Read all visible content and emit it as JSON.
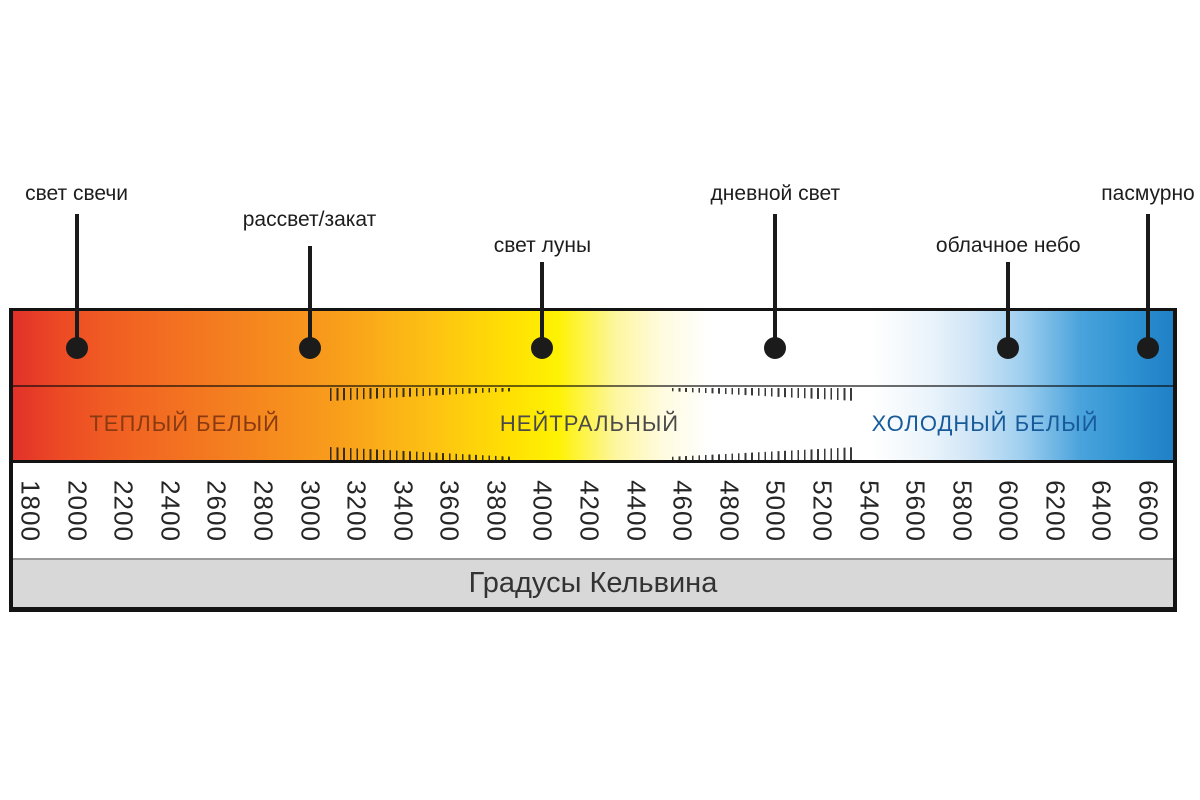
{
  "annotations": [
    {
      "label": "свет свечи",
      "kelvin": 2000,
      "tier": "high"
    },
    {
      "label": "рассвет/закат",
      "kelvin": 3000,
      "tier": "mid"
    },
    {
      "label": "свет луны",
      "kelvin": 4000,
      "tier": "low"
    },
    {
      "label": "дневной свет",
      "kelvin": 5000,
      "tier": "high"
    },
    {
      "label": "облачное небо",
      "kelvin": 6000,
      "tier": "low"
    },
    {
      "label": "пасмурно",
      "kelvin": 6600,
      "tier": "high"
    }
  ],
  "zones": [
    {
      "label": "ТЕПЛЫЙ БЕЛЫЙ"
    },
    {
      "label": "НЕЙТРАЛЬНЫЙ"
    },
    {
      "label": "ХОЛОДНЫЙ БЕЛЫЙ"
    }
  ],
  "scale": {
    "min": 1800,
    "max": 6600,
    "step": 200,
    "title": "Градусы Кельвина"
  },
  "colors": {
    "warm_red": "#e2312a",
    "orange": "#f47d20",
    "yellow": "#ffe103",
    "neutral_white": "#ffffff",
    "cold_blue": "#2080c6",
    "footer_gray": "#d8d8d8",
    "zone_warm_text": "#8a3a12",
    "zone_neutral_text": "#4a4a4a",
    "zone_cold_text": "#175a99",
    "ink": "#1b1b1b"
  },
  "chart_data": {
    "type": "scale",
    "axis_label": "Градусы Кельвина",
    "axis_range": [
      1800,
      6600
    ],
    "tick_step": 200,
    "tick_labels": [
      1800,
      2000,
      2200,
      2400,
      2600,
      2800,
      3000,
      3200,
      3400,
      3600,
      3800,
      4000,
      4200,
      4400,
      4600,
      4800,
      5000,
      5200,
      5400,
      5600,
      5800,
      6000,
      6200,
      6400,
      6600
    ],
    "zones": [
      {
        "label": "ТЕПЛЫЙ БЕЛЫЙ",
        "approx_range_k": [
          1800,
          3300
        ]
      },
      {
        "label": "НЕЙТРАЛЬНЫЙ",
        "approx_range_k": [
          3300,
          5300
        ]
      },
      {
        "label": "ХОЛОДНЫЙ БЕЛЫЙ",
        "approx_range_k": [
          5300,
          6600
        ]
      }
    ],
    "points": [
      {
        "label": "свет свечи",
        "kelvin": 2000
      },
      {
        "label": "рассвет/закат",
        "kelvin": 3000
      },
      {
        "label": "свет луны",
        "kelvin": 4000
      },
      {
        "label": "дневной свет",
        "kelvin": 5000
      },
      {
        "label": "облачное небо",
        "kelvin": 6000
      },
      {
        "label": "пасмурно",
        "kelvin": 6600
      }
    ],
    "legend_position": "none",
    "grid": false
  }
}
